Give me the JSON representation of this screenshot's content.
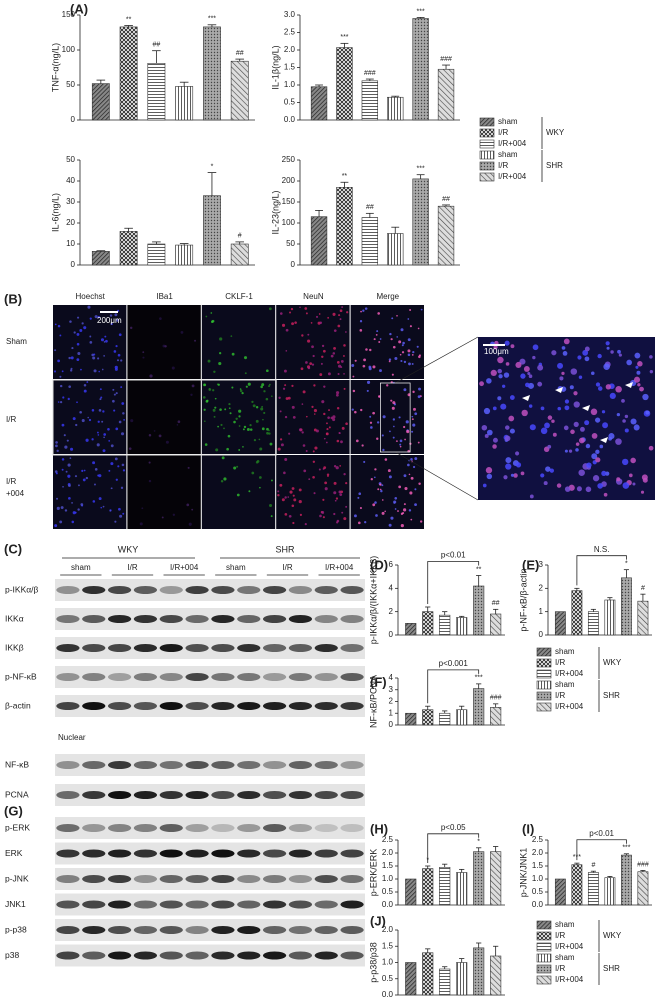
{
  "panels": {
    "A": "(A)",
    "B": "(B)",
    "C": "(C)",
    "D": "(D)",
    "E": "(E)",
    "F": "(F)",
    "G": "(G)",
    "H": "(H)",
    "I": "(I)",
    "J": "(J)"
  },
  "legend": {
    "items": [
      "sham",
      "I/R",
      "I/R+004",
      "sham",
      "I/R",
      "I/R+004"
    ],
    "groups": [
      "WKY",
      "SHR"
    ]
  },
  "microscopy": {
    "columns": [
      "Hoechst",
      "IBa1",
      "CKLF-1",
      "NeuN",
      "Merge"
    ],
    "rows": [
      "Sham",
      "I/R",
      "I/R",
      "+004"
    ],
    "scale_bar": "200μm",
    "inset_scale_bar": "100μm"
  },
  "blots_c": {
    "groups": [
      "WKY",
      "SHR"
    ],
    "lanes": [
      "sham",
      "I/R",
      "I/R+004",
      "sham",
      "I/R",
      "I/R+004"
    ],
    "rows": [
      "p-IKKα/β",
      "IKKα",
      "IKKβ",
      "p-NF-κB",
      "β-actin"
    ],
    "nuclear": "Nuclear",
    "nuclear_rows": [
      "NF-κB",
      "PCNA"
    ]
  },
  "blots_g": {
    "rows": [
      "p-ERK",
      "ERK",
      "p-JNK",
      "JNK1",
      "p-p38",
      "p38"
    ]
  },
  "chart_data": [
    {
      "type": "bar",
      "ylabel": "TNF-α(ng/L)",
      "values": [
        52,
        133,
        81,
        48,
        133,
        84
      ],
      "errors": [
        5,
        2,
        18,
        6,
        3,
        3
      ],
      "annotations": [
        null,
        "**",
        "##",
        null,
        "***",
        "##"
      ],
      "ylim": [
        0,
        150
      ],
      "yticks": [
        0,
        50,
        100,
        150
      ]
    },
    {
      "type": "bar",
      "ylabel": "IL-1β(ng/L)",
      "values": [
        0.95,
        2.07,
        1.12,
        0.65,
        2.9,
        1.45
      ],
      "errors": [
        0.05,
        0.12,
        0.05,
        0.03,
        0.03,
        0.12
      ],
      "annotations": [
        null,
        "***",
        "###",
        null,
        "***",
        "###"
      ],
      "ylim": [
        0,
        3
      ],
      "yticks": [
        {
          "value": 0,
          "label": "0.0"
        },
        0.5,
        {
          "value": 1,
          "label": "1.0"
        },
        1.5,
        {
          "value": 2,
          "label": "2.0"
        },
        2.5,
        {
          "value": 3,
          "label": "3.0"
        }
      ]
    },
    {
      "type": "bar",
      "ylabel": "IL-6(ng/L)",
      "values": [
        6.5,
        16,
        10,
        9.5,
        33,
        10
      ],
      "errors": [
        0.3,
        1.5,
        1,
        0.7,
        11,
        1
      ],
      "annotations": [
        null,
        null,
        null,
        null,
        "*",
        "#"
      ],
      "ylim": [
        0,
        50
      ],
      "yticks": [
        0,
        10,
        20,
        30,
        40,
        50
      ]
    },
    {
      "type": "bar",
      "ylabel": "IL-23(ng/L)",
      "values": [
        115,
        185,
        113,
        75,
        205,
        140
      ],
      "errors": [
        15,
        12,
        10,
        15,
        10,
        3
      ],
      "annotations": [
        null,
        "**",
        "##",
        null,
        "***",
        "##"
      ],
      "ylim": [
        0,
        250
      ],
      "yticks": [
        0,
        50,
        100,
        150,
        200,
        250
      ]
    },
    {
      "type": "bar",
      "ylabel": "p-IKKα/β/(IKKα+IKKβ)",
      "values": [
        1,
        2,
        1.7,
        1.5,
        4.2,
        1.8
      ],
      "errors": [
        0,
        0.4,
        0.3,
        0.1,
        0.9,
        0.4
      ],
      "annotations": [
        null,
        null,
        null,
        null,
        "**",
        "##"
      ],
      "bracket": "p<0.01",
      "ylim": [
        0,
        6
      ],
      "yticks": [
        0,
        2,
        4,
        6
      ]
    },
    {
      "type": "bar",
      "ylabel": "p-NF-κB/β-actin",
      "values": [
        1,
        1.9,
        1,
        1.5,
        2.45,
        1.45
      ],
      "errors": [
        0,
        0.1,
        0.1,
        0.1,
        0.35,
        0.3
      ],
      "annotations": [
        null,
        null,
        null,
        null,
        "*",
        "#"
      ],
      "bracket": "N.S.",
      "ylim": [
        0,
        3
      ],
      "yticks": [
        0,
        1,
        2,
        3
      ]
    },
    {
      "type": "bar",
      "ylabel": "NF-κB/PCNA",
      "values": [
        1,
        1.3,
        1,
        1.3,
        3.1,
        1.5
      ],
      "errors": [
        0,
        0.3,
        0.2,
        0.3,
        0.4,
        0.3
      ],
      "annotations": [
        null,
        null,
        null,
        null,
        "***",
        "###"
      ],
      "bracket": "p<0.001",
      "ylim": [
        0,
        4
      ],
      "yticks": [
        0,
        1,
        2,
        3,
        4
      ]
    },
    {
      "type": "bar",
      "ylabel": "p-ERK/ERK",
      "values": [
        1,
        1.4,
        1.45,
        1.25,
        2.05,
        2.05
      ],
      "errors": [
        0,
        0.1,
        0.12,
        0.12,
        0.15,
        0.2
      ],
      "annotations": [
        null,
        "*",
        null,
        null,
        "*",
        null
      ],
      "bracket": "p<0.05",
      "ylim": [
        0,
        2.5
      ],
      "yticks": [
        {
          "value": 0,
          "label": "0.0"
        },
        0.5,
        {
          "value": 1,
          "label": "1.0"
        },
        1.5,
        {
          "value": 2,
          "label": "2.0"
        },
        2.5
      ]
    },
    {
      "type": "bar",
      "ylabel": "p-JNK/JNK1",
      "values": [
        1,
        1.55,
        1.25,
        1.05,
        1.92,
        1.28
      ],
      "errors": [
        0,
        0.06,
        0.05,
        0.05,
        0.05,
        0.05
      ],
      "annotations": [
        null,
        "***",
        "#",
        null,
        "***",
        "###"
      ],
      "bracket": "p<0.01",
      "ylim": [
        0,
        2.5
      ],
      "yticks": [
        {
          "value": 0,
          "label": "0.0"
        },
        0.5,
        {
          "value": 1,
          "label": "1.0"
        },
        1.5,
        {
          "value": 2,
          "label": "2.0"
        },
        2.5
      ]
    },
    {
      "type": "bar",
      "ylabel": "p-p38/p38",
      "values": [
        1,
        1.3,
        0.8,
        1.0,
        1.45,
        1.2
      ],
      "errors": [
        0,
        0.12,
        0.07,
        0.12,
        0.15,
        0.3
      ],
      "annotations": [
        null,
        null,
        null,
        null,
        null,
        null
      ],
      "ylim": [
        0,
        2
      ],
      "yticks": [
        {
          "value": 0,
          "label": "0.0"
        },
        0.5,
        {
          "value": 1,
          "label": "1.0"
        },
        1.5,
        {
          "value": 2,
          "label": "2.0"
        }
      ]
    }
  ]
}
